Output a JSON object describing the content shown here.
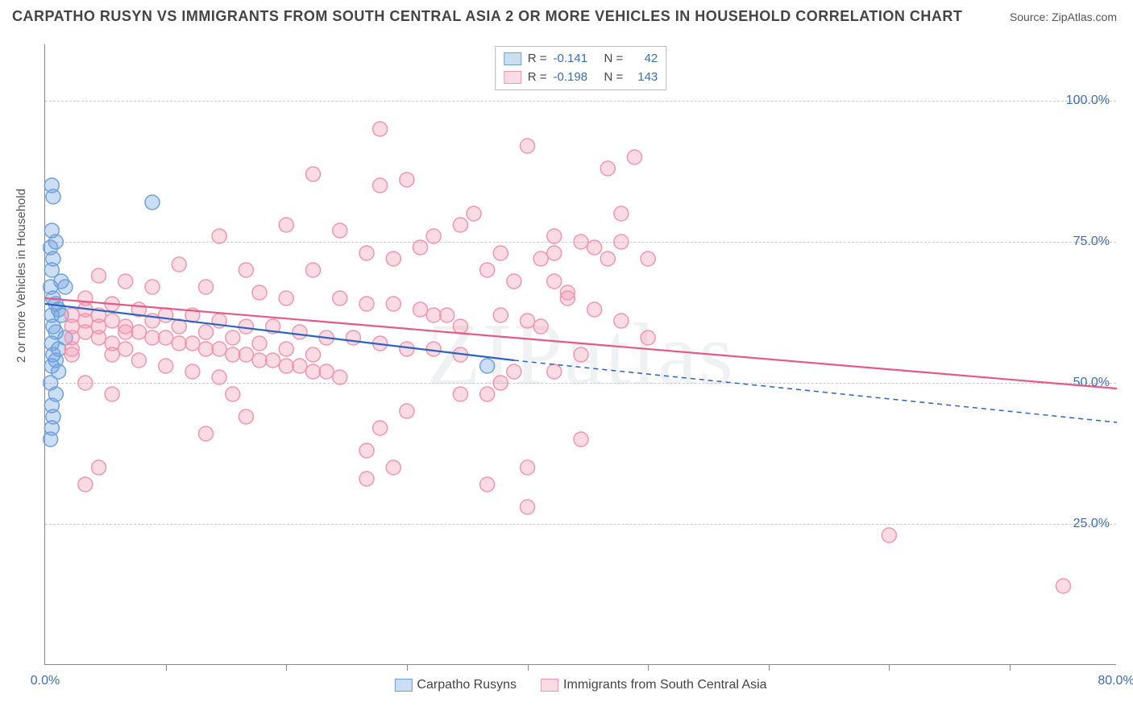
{
  "title": "CARPATHO RUSYN VS IMMIGRANTS FROM SOUTH CENTRAL ASIA 2 OR MORE VEHICLES IN HOUSEHOLD CORRELATION CHART",
  "source": "Source: ZipAtlas.com",
  "watermark": "ZIPatlas",
  "y_axis_label": "2 or more Vehicles in Household",
  "chart": {
    "type": "scatter",
    "xlim": [
      0,
      80
    ],
    "ylim": [
      0,
      110
    ],
    "x_ticks_major": [
      0,
      80
    ],
    "x_ticks_minor": [
      9,
      18,
      27,
      36,
      45,
      54,
      63,
      72
    ],
    "y_gridlines": [
      25,
      50,
      75,
      100
    ],
    "y_tick_labels": [
      "25.0%",
      "50.0%",
      "75.0%",
      "100.0%"
    ],
    "x_tick_labels": [
      "0.0%",
      "80.0%"
    ],
    "background_color": "#ffffff",
    "grid_color": "#cccccc",
    "axis_color": "#888888",
    "label_color_blue": "#3b6db0",
    "marker_radius": 9,
    "marker_stroke_width": 1.5,
    "line_width": 2.2
  },
  "series": [
    {
      "name": "Carpatho Rusyns",
      "fill_color": "rgba(110,160,220,0.35)",
      "stroke_color": "#6fa0dc",
      "line_color": "#2a63c2",
      "R": "-0.141",
      "N": "42",
      "regression": {
        "x1": 0,
        "y1": 64,
        "x2": 35,
        "y2": 54,
        "x2_ext": 80,
        "y2_ext": 43
      },
      "points": [
        [
          0.5,
          85
        ],
        [
          0.6,
          83
        ],
        [
          8,
          82
        ],
        [
          0.5,
          77
        ],
        [
          0.8,
          75
        ],
        [
          0.4,
          74
        ],
        [
          0.6,
          72
        ],
        [
          0.5,
          70
        ],
        [
          1.2,
          68
        ],
        [
          0.4,
          67
        ],
        [
          1.5,
          67
        ],
        [
          0.6,
          65
        ],
        [
          0.8,
          64
        ],
        [
          1.0,
          63
        ],
        [
          0.5,
          62
        ],
        [
          1.2,
          62
        ],
        [
          0.6,
          60
        ],
        [
          0.8,
          59
        ],
        [
          1.5,
          58
        ],
        [
          0.5,
          57
        ],
        [
          1.0,
          56
        ],
        [
          0.6,
          55
        ],
        [
          0.8,
          54
        ],
        [
          0.5,
          53
        ],
        [
          1.0,
          52
        ],
        [
          0.4,
          50
        ],
        [
          0.8,
          48
        ],
        [
          0.5,
          46
        ],
        [
          33,
          53
        ],
        [
          0.6,
          44
        ],
        [
          0.5,
          42
        ],
        [
          0.4,
          40
        ]
      ]
    },
    {
      "name": "Immigants from South Central Asia",
      "fill_color": "rgba(240,150,175,0.35)",
      "stroke_color": "#f096af",
      "line_color": "#e45a85",
      "R": "-0.198",
      "N": "143",
      "regression": {
        "x1": 0,
        "y1": 65,
        "x2": 80,
        "y2": 49
      },
      "points": [
        [
          25,
          95
        ],
        [
          36,
          92
        ],
        [
          44,
          90
        ],
        [
          20,
          87
        ],
        [
          27,
          86
        ],
        [
          25,
          85
        ],
        [
          31,
          78
        ],
        [
          32,
          80
        ],
        [
          18,
          78
        ],
        [
          22,
          77
        ],
        [
          13,
          76
        ],
        [
          29,
          76
        ],
        [
          38,
          76
        ],
        [
          40,
          75
        ],
        [
          42,
          72
        ],
        [
          38,
          68
        ],
        [
          28,
          74
        ],
        [
          24,
          73
        ],
        [
          26,
          72
        ],
        [
          10,
          71
        ],
        [
          15,
          70
        ],
        [
          20,
          70
        ],
        [
          33,
          70
        ],
        [
          35,
          68
        ],
        [
          4,
          69
        ],
        [
          6,
          68
        ],
        [
          8,
          67
        ],
        [
          12,
          67
        ],
        [
          16,
          66
        ],
        [
          18,
          65
        ],
        [
          22,
          65
        ],
        [
          24,
          64
        ],
        [
          26,
          64
        ],
        [
          28,
          63
        ],
        [
          30,
          62
        ],
        [
          34,
          62
        ],
        [
          36,
          61
        ],
        [
          3,
          65
        ],
        [
          5,
          64
        ],
        [
          7,
          63
        ],
        [
          9,
          62
        ],
        [
          11,
          62
        ],
        [
          13,
          61
        ],
        [
          15,
          60
        ],
        [
          17,
          60
        ],
        [
          19,
          59
        ],
        [
          21,
          58
        ],
        [
          23,
          58
        ],
        [
          25,
          57
        ],
        [
          27,
          56
        ],
        [
          29,
          56
        ],
        [
          31,
          55
        ],
        [
          4,
          60
        ],
        [
          6,
          59
        ],
        [
          8,
          58
        ],
        [
          10,
          57
        ],
        [
          12,
          56
        ],
        [
          14,
          55
        ],
        [
          16,
          54
        ],
        [
          18,
          53
        ],
        [
          20,
          52
        ],
        [
          22,
          51
        ],
        [
          5,
          55
        ],
        [
          7,
          54
        ],
        [
          9,
          53
        ],
        [
          11,
          52
        ],
        [
          13,
          51
        ],
        [
          3,
          50
        ],
        [
          5,
          48
        ],
        [
          14,
          48
        ],
        [
          15,
          44
        ],
        [
          12,
          41
        ],
        [
          25,
          42
        ],
        [
          27,
          45
        ],
        [
          33,
          32
        ],
        [
          24,
          38
        ],
        [
          26,
          35
        ],
        [
          31,
          48
        ],
        [
          36,
          28
        ],
        [
          34,
          50
        ],
        [
          37,
          60
        ],
        [
          39,
          66
        ],
        [
          41,
          74
        ],
        [
          43,
          80
        ],
        [
          45,
          58
        ],
        [
          40,
          55
        ],
        [
          38,
          52
        ],
        [
          36,
          35
        ],
        [
          4,
          35
        ],
        [
          63,
          23
        ],
        [
          76,
          14
        ],
        [
          2,
          62
        ],
        [
          2,
          60
        ],
        [
          2,
          58
        ],
        [
          2,
          56
        ],
        [
          2,
          55
        ],
        [
          3,
          63
        ],
        [
          3,
          61
        ],
        [
          3,
          59
        ],
        [
          4,
          62
        ],
        [
          4,
          58
        ],
        [
          5,
          61
        ],
        [
          5,
          57
        ],
        [
          6,
          60
        ],
        [
          6,
          56
        ],
        [
          7,
          59
        ],
        [
          8,
          61
        ],
        [
          9,
          58
        ],
        [
          10,
          60
        ],
        [
          11,
          57
        ],
        [
          12,
          59
        ],
        [
          13,
          56
        ],
        [
          14,
          58
        ],
        [
          15,
          55
        ],
        [
          16,
          57
        ],
        [
          17,
          54
        ],
        [
          18,
          56
        ],
        [
          19,
          53
        ],
        [
          20,
          55
        ],
        [
          21,
          52
        ],
        [
          3,
          32
        ],
        [
          34,
          73
        ],
        [
          37,
          72
        ],
        [
          39,
          65
        ],
        [
          41,
          63
        ],
        [
          43,
          61
        ],
        [
          40,
          40
        ],
        [
          24,
          33
        ],
        [
          45,
          72
        ],
        [
          42,
          88
        ],
        [
          43,
          75
        ],
        [
          38,
          73
        ],
        [
          35,
          52
        ],
        [
          33,
          48
        ],
        [
          31,
          60
        ],
        [
          29,
          62
        ]
      ]
    }
  ],
  "legend_top": {
    "rows": [
      {
        "sw_fill": "rgba(110,160,220,0.35)",
        "sw_border": "#6fa0dc",
        "r_label": "R =",
        "r_val": "-0.141",
        "n_label": "N =",
        "n_val": "42"
      },
      {
        "sw_fill": "rgba(240,150,175,0.35)",
        "sw_border": "#f096af",
        "r_label": "R =",
        "r_val": "-0.198",
        "n_label": "N =",
        "n_val": "143"
      }
    ]
  },
  "legend_bottom": [
    {
      "sw_fill": "rgba(110,160,220,0.35)",
      "sw_border": "#6fa0dc",
      "label": "Carpatho Rusyns"
    },
    {
      "sw_fill": "rgba(240,150,175,0.35)",
      "sw_border": "#f096af",
      "label": "Immigrants from South Central Asia"
    }
  ]
}
